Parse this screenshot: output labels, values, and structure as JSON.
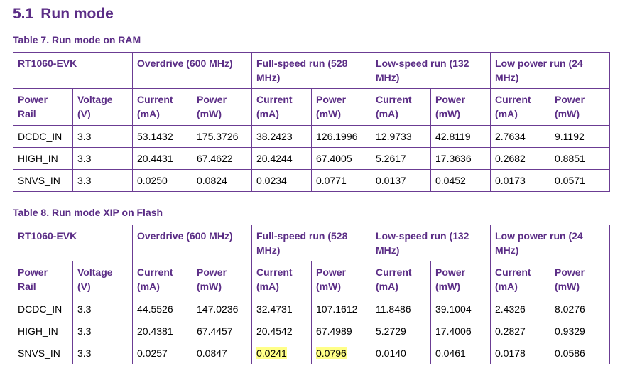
{
  "heading": {
    "number": "5.1",
    "title": "Run mode"
  },
  "tables": [
    {
      "caption": "Table 7.  Run mode on RAM",
      "group_header": [
        "RT1060-EVK",
        "Overdrive (600 MHz)",
        "Full-speed run (528 MHz)",
        "Low-speed run (132 MHz)",
        "Low power run (24 MHz)"
      ],
      "header": [
        "Power Rail",
        "Voltage (V)",
        "Current (mA)",
        "Power (mW)",
        "Current (mA)",
        "Power (mW)",
        "Current (mA)",
        "Power (mW)",
        "Current (mA)",
        "Power (mW)"
      ],
      "rows": [
        [
          "DCDC_IN",
          "3.3",
          "53.1432",
          "175.3726",
          "38.2423",
          "126.1996",
          "12.9733",
          "42.8119",
          "2.7634",
          "9.1192"
        ],
        [
          "HIGH_IN",
          "3.3",
          "20.4431",
          "67.4622",
          "20.4244",
          "67.4005",
          "5.2617",
          "17.3636",
          "0.2682",
          "0.8851"
        ],
        [
          "SNVS_IN",
          "3.3",
          "0.0250",
          "0.0824",
          "0.0234",
          "0.0771",
          "0.0137",
          "0.0452",
          "0.0173",
          "0.0571"
        ]
      ]
    },
    {
      "caption": "Table 8.  Run mode XIP on Flash",
      "group_header": [
        "RT1060-EVK",
        "Overdrive (600 MHz)",
        "Full-speed run (528 MHz)",
        "Low-speed run (132 MHz)",
        "Low power run (24 MHz)"
      ],
      "header": [
        "Power Rail",
        "Voltage (V)",
        "Current (mA)",
        "Power (mW)",
        "Current (mA)",
        "Power (mW)",
        "Current (mA)",
        "Power (mW)",
        "Current (mA)",
        "Power (mW)"
      ],
      "rows": [
        [
          "DCDC_IN",
          "3.3",
          "44.5526",
          "147.0236",
          "32.4731",
          "107.1612",
          "11.8486",
          "39.1004",
          "2.4326",
          "8.0276"
        ],
        [
          "HIGH_IN",
          "3.3",
          "20.4381",
          "67.4457",
          "20.4542",
          "67.4989",
          "5.2729",
          "17.4006",
          "0.2827",
          "0.9329"
        ],
        [
          "SNVS_IN",
          "3.3",
          "0.0257",
          "0.0847",
          "0.0241",
          "0.0796",
          "0.0140",
          "0.0461",
          "0.0178",
          "0.0586"
        ]
      ]
    }
  ]
}
